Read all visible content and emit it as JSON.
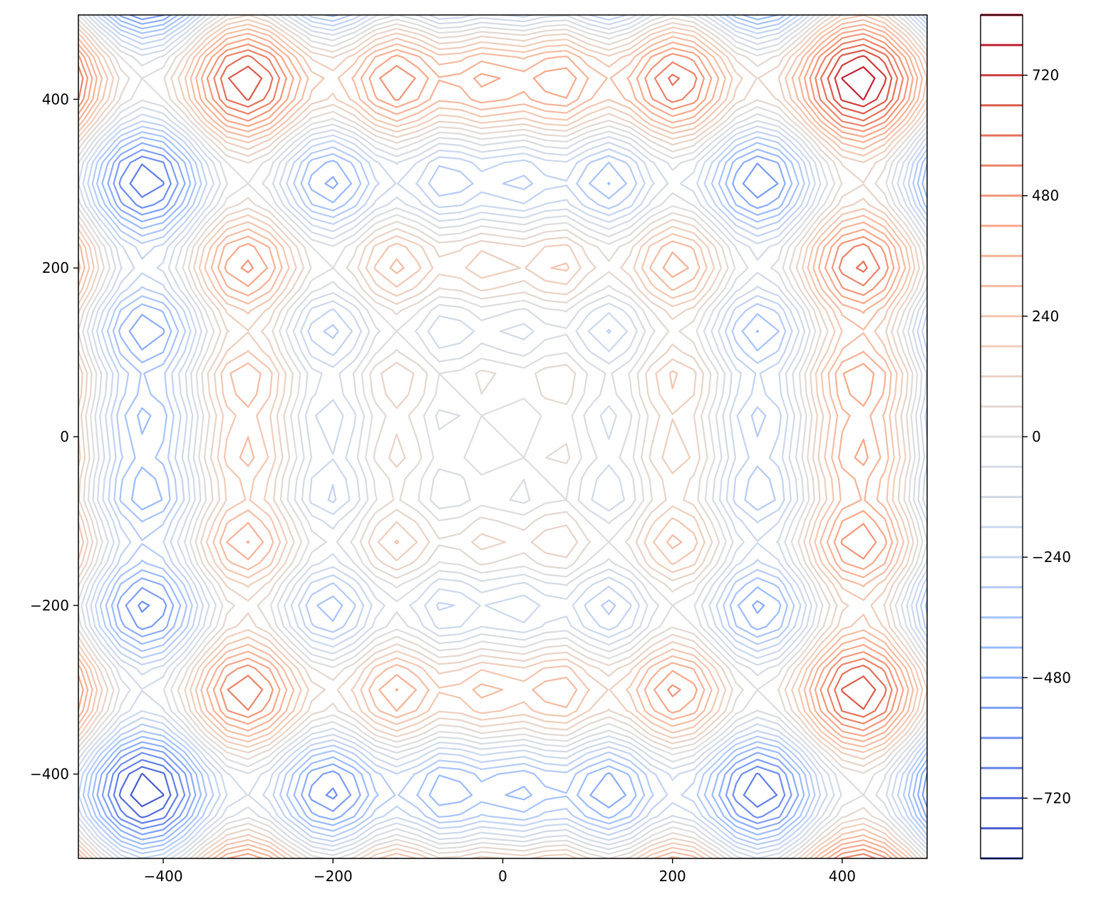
{
  "chart_data": {
    "type": "contour",
    "title": "",
    "xlabel": "",
    "ylabel": "",
    "xlim": [
      -500,
      500
    ],
    "ylim": [
      -500,
      500
    ],
    "function": "x*sin(sqrt(|x|)) + y*sin(sqrt(|y|)) (Schwefel-type)",
    "grid_resolution": 41,
    "x_ticks": [
      -400,
      -200,
      0,
      200,
      400
    ],
    "x_tick_labels": [
      "−400",
      "−200",
      "0",
      "200",
      "400"
    ],
    "y_ticks": [
      -400,
      -200,
      0,
      200,
      400
    ],
    "y_tick_labels": [
      "−400",
      "−200",
      "0",
      "200",
      "400"
    ],
    "colormap": "coolwarm",
    "colormap_stops": [
      "#3b4cc0",
      "#6788ee",
      "#9abbff",
      "#c9d7f0",
      "#dddddd",
      "#f2cbb7",
      "#f7a889",
      "#e26952",
      "#b40426"
    ],
    "levels": [
      -840,
      -780,
      -720,
      -660,
      -600,
      -540,
      -480,
      -420,
      -360,
      -300,
      -240,
      -180,
      -120,
      -60,
      0,
      60,
      120,
      180,
      240,
      300,
      360,
      420,
      480,
      540,
      600,
      660,
      720,
      780,
      840
    ],
    "colorbar": {
      "range": [
        -840,
        840
      ],
      "ticks": [
        -720,
        -480,
        -240,
        0,
        240,
        480,
        720
      ],
      "tick_labels": [
        "−720",
        "−480",
        "−240",
        "0",
        "240",
        "480",
        "720"
      ]
    },
    "grid": false,
    "legend": "none"
  }
}
